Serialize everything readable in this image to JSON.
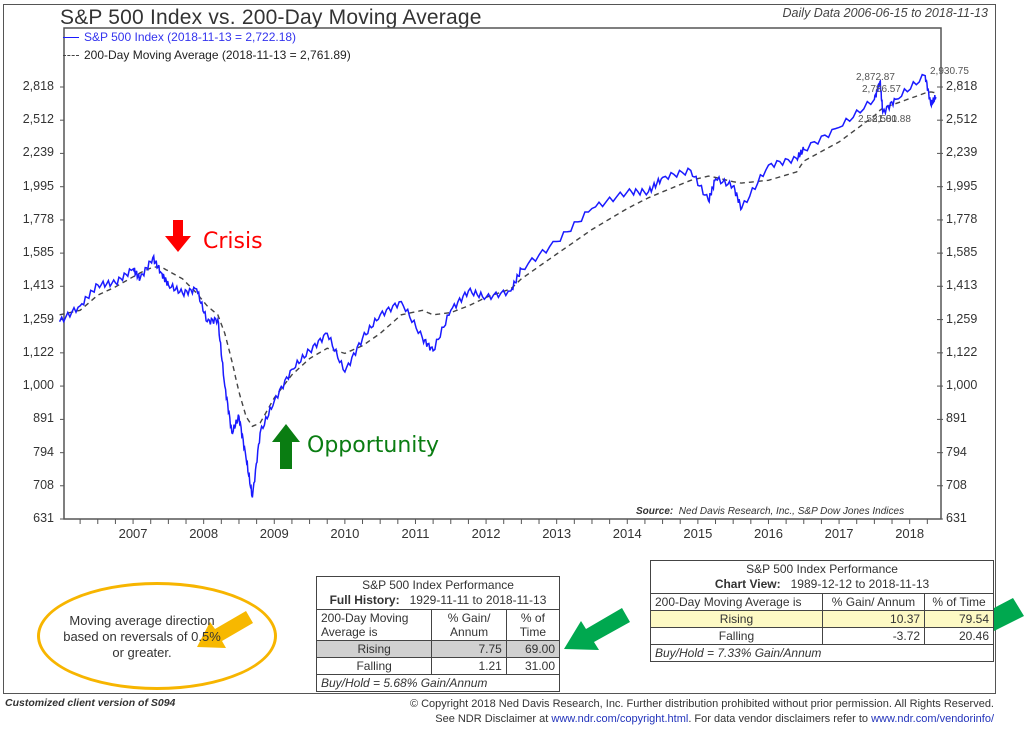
{
  "header": {
    "title": "S&P 500 Index vs. 200-Day Moving Average",
    "date_range": "Daily Data 2006-06-15 to 2018-11-13"
  },
  "legend": {
    "series1": "S&P 500 Index (2018-11-13 = 2,722.18)",
    "series2": "200-Day Moving Average (2018-11-13 = 2,761.89)"
  },
  "annotations": {
    "crisis": "Crisis",
    "opportunity": "Opportunity",
    "peak_labels": [
      "2,872.87",
      "2,786.57",
      "2,930.75",
      "2,581.00",
      "2,581.88"
    ],
    "oval_note": "Moving average direction based on reversals of 0.5% or greater.",
    "source_label": "Source:",
    "source_text": "Ned Davis Research, Inc., S&P Dow Jones Indices"
  },
  "colors": {
    "index_line": "#1a1aff",
    "ma_line": "#444444",
    "crisis": "#ff0000",
    "opportunity": "#0a7d12",
    "callout_arrow": "#00a84f",
    "oval": "#f7b500",
    "rising_highlight_full": "#d0d0d0",
    "rising_highlight_view": "#fdf9c4"
  },
  "table_full_history": {
    "title": "S&P 500 Index Performance",
    "subtitle_label": "Full History:",
    "subtitle_range": "1929-11-11 to 2018-11-13",
    "col_label": "200-Day Moving Average is",
    "col_gain": "% Gain/ Annum",
    "col_time": "% of Time",
    "rows": [
      {
        "label": "Rising",
        "gain": "7.75",
        "time": "69.00"
      },
      {
        "label": "Falling",
        "gain": "1.21",
        "time": "31.00"
      }
    ],
    "footer": "Buy/Hold = 5.68% Gain/Annum"
  },
  "table_chart_view": {
    "title": "S&P 500 Index Performance",
    "subtitle_label": "Chart View:",
    "subtitle_range": "1989-12-12 to 2018-11-13",
    "col_label": "200-Day Moving Average is",
    "col_gain": "% Gain/ Annum",
    "col_time": "% of Time",
    "rows": [
      {
        "label": "Rising",
        "gain": "10.37",
        "time": "79.54"
      },
      {
        "label": "Falling",
        "gain": "-3.72",
        "time": "20.46"
      }
    ],
    "footer": "Buy/Hold = 7.33% Gain/Annum"
  },
  "footer": {
    "left": "Customized client version of S094",
    "copyright_line1": "© Copyright 2018 Ned Davis Research, Inc. Further distribution prohibited without prior permission. All Rights Reserved.",
    "copyright_line2_a": "See NDR Disclaimer at ",
    "copyright_link1": "www.ndr.com/copyright.html",
    "copyright_line2_b": ". For data vendor disclaimers refer to ",
    "copyright_link2": "www.ndr.com/vendorinfo/"
  },
  "chart_data": {
    "type": "line",
    "title": "S&P 500 Index vs. 200-Day Moving Average",
    "subtitle": "Daily Data 2006-06-15 to 2018-11-13",
    "xlabel": "",
    "ylabel": "",
    "yscale": "log",
    "ylim": [
      631,
      3000
    ],
    "y_ticks": [
      631,
      708,
      794,
      891,
      1000,
      1122,
      1259,
      1413,
      1585,
      1778,
      1995,
      2239,
      2512,
      2818
    ],
    "x_ticks": [
      "2007",
      "2008",
      "2009",
      "2010",
      "2011",
      "2012",
      "2013",
      "2014",
      "2015",
      "2016",
      "2017",
      "2018"
    ],
    "grid": false,
    "legend_position": "top-left",
    "x": [
      2006.46,
      2006.75,
      2007.0,
      2007.25,
      2007.5,
      2007.6,
      2007.78,
      2007.9,
      2008.0,
      2008.2,
      2008.4,
      2008.55,
      2008.7,
      2008.8,
      2008.9,
      2009.0,
      2009.1,
      2009.19,
      2009.3,
      2009.5,
      2009.75,
      2010.0,
      2010.25,
      2010.5,
      2010.75,
      2011.0,
      2011.3,
      2011.6,
      2011.75,
      2012.0,
      2012.25,
      2012.5,
      2012.85,
      2013.0,
      2013.5,
      2014.0,
      2014.5,
      2014.8,
      2015.0,
      2015.4,
      2015.65,
      2015.75,
      2016.0,
      2016.12,
      2016.5,
      2016.9,
      2017.0,
      2017.5,
      2018.0,
      2018.08,
      2018.12,
      2018.3,
      2018.72,
      2018.8,
      2018.87
    ],
    "series": [
      {
        "name": "S&P 500 Index",
        "values": [
          1250,
          1320,
          1420,
          1430,
          1500,
          1450,
          1560,
          1480,
          1420,
          1380,
          1400,
          1250,
          1260,
          1000,
          850,
          900,
          780,
          680,
          850,
          950,
          1060,
          1130,
          1200,
          1050,
          1180,
          1280,
          1340,
          1180,
          1130,
          1300,
          1390,
          1360,
          1390,
          1500,
          1650,
          1850,
          1960,
          1960,
          2060,
          2110,
          1900,
          2050,
          2000,
          1850,
          2150,
          2200,
          2270,
          2450,
          2700,
          2872.87,
          2581,
          2700,
          2930.75,
          2650,
          2722.18
        ]
      },
      {
        "name": "200-Day Moving Average",
        "values": [
          1280,
          1300,
          1370,
          1410,
          1460,
          1480,
          1510,
          1510,
          1490,
          1450,
          1380,
          1320,
          1280,
          1200,
          1090,
          980,
          900,
          870,
          880,
          960,
          1040,
          1100,
          1140,
          1120,
          1150,
          1200,
          1280,
          1300,
          1280,
          1290,
          1320,
          1360,
          1400,
          1450,
          1580,
          1720,
          1850,
          1920,
          1960,
          2040,
          2070,
          2060,
          2030,
          2020,
          2040,
          2100,
          2180,
          2330,
          2550,
          2600,
          2620,
          2660,
          2760,
          2770,
          2761.89
        ]
      }
    ],
    "annotations": [
      {
        "text": "Crisis",
        "x": 2007.9,
        "arrow": "down"
      },
      {
        "text": "Opportunity",
        "x": 2009.6,
        "arrow": "up"
      },
      {
        "text": "2,872.87",
        "x": 2018.08
      },
      {
        "text": "2,786.57",
        "x": 2018.15
      },
      {
        "text": "2,930.75",
        "x": 2018.72
      }
    ]
  }
}
